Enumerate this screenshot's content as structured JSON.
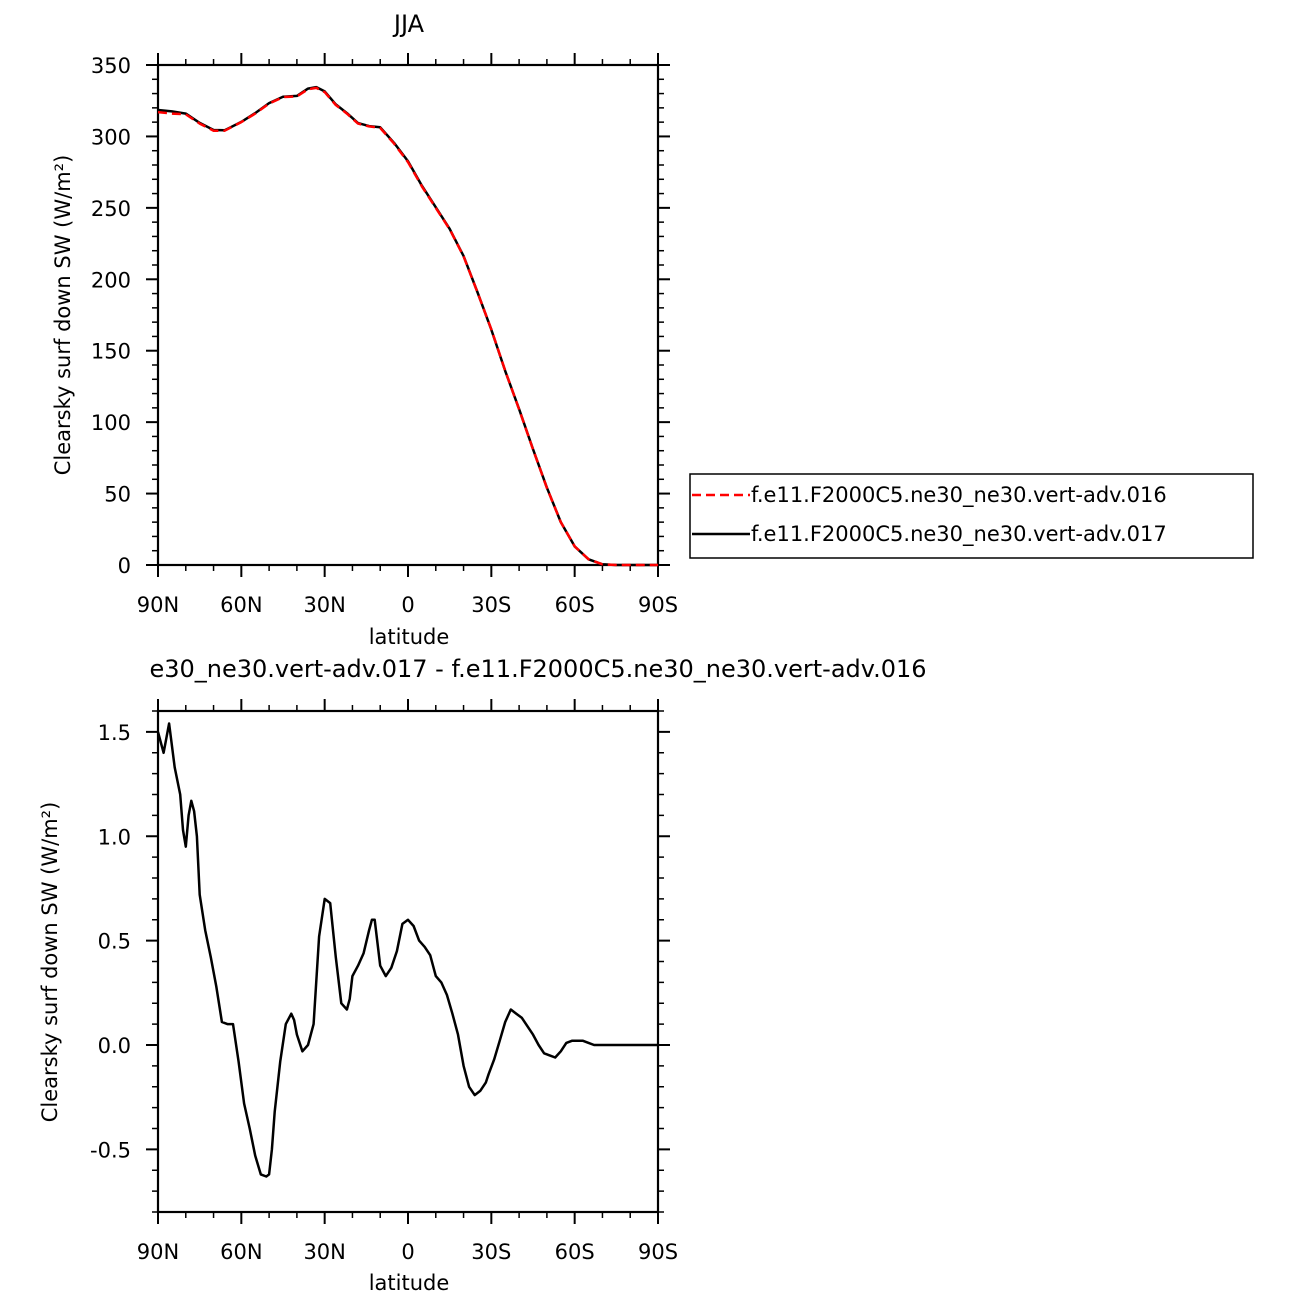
{
  "chart_data": [
    {
      "type": "line",
      "title": "JJA",
      "xlabel": "latitude",
      "ylabel": "Clearsky surf down SW (W/m²)",
      "xlim": [
        90,
        -90
      ],
      "ylim": [
        0,
        350
      ],
      "xticks": [
        90,
        60,
        30,
        0,
        -30,
        -60,
        -90
      ],
      "xtick_labels": [
        "90N",
        "60N",
        "30N",
        "0",
        "30S",
        "60S",
        "90S"
      ],
      "yticks": [
        0,
        50,
        100,
        150,
        200,
        250,
        300,
        350
      ],
      "ytick_labels": [
        "0",
        "50",
        "100",
        "150",
        "200",
        "250",
        "300",
        "350"
      ],
      "grid": false,
      "legend_position": "right",
      "series": [
        {
          "name": "f.e11.F2000C5.ne30_ne30.vert-adv.016",
          "color": "#ff0000",
          "dashed": true,
          "x": [
            90,
            85,
            80,
            75,
            70,
            66,
            60,
            55,
            50,
            45,
            40,
            36,
            33,
            30,
            26,
            22,
            18,
            14,
            10,
            5,
            0,
            -5,
            -10,
            -15,
            -20,
            -25,
            -30,
            -35,
            -40,
            -45,
            -50,
            -55,
            -60,
            -65,
            -70,
            -75,
            -80,
            -85,
            -90
          ],
          "y": [
            317,
            316,
            315.5,
            309,
            304,
            304,
            310,
            316,
            323,
            327.5,
            328,
            333,
            334,
            331,
            322,
            316,
            309,
            307,
            306,
            295,
            282,
            265,
            250,
            235,
            216,
            191,
            165,
            136,
            109,
            81,
            54,
            30,
            13,
            4,
            0.5,
            0,
            0,
            0,
            0
          ]
        },
        {
          "name": "f.e11.F2000C5.ne30_ne30.vert-adv.017",
          "color": "#000000",
          "dashed": false,
          "x": [
            90,
            85,
            80,
            75,
            70,
            66,
            60,
            55,
            50,
            45,
            40,
            36,
            33,
            30,
            26,
            22,
            18,
            14,
            10,
            5,
            0,
            -5,
            -10,
            -15,
            -20,
            -25,
            -30,
            -35,
            -40,
            -45,
            -50,
            -55,
            -60,
            -65,
            -70,
            -75,
            -80,
            -85,
            -90
          ],
          "y": [
            318.5,
            317.5,
            316,
            309.5,
            304.5,
            304.3,
            310.2,
            316.3,
            323.3,
            327.8,
            328.4,
            333.5,
            334.5,
            331.5,
            322.4,
            316.3,
            309.3,
            307.2,
            306.4,
            295.5,
            282.6,
            265.5,
            250.4,
            235.3,
            216.2,
            191.1,
            164.8,
            135.9,
            109.1,
            81.1,
            54.1,
            30,
            13,
            4,
            0.5,
            0,
            0,
            0,
            0
          ]
        }
      ]
    },
    {
      "type": "line",
      "title": "e30_ne30.vert-adv.017 - f.e11.F2000C5.ne30_ne30.vert-adv.016",
      "xlabel": "latitude",
      "ylabel": "Clearsky surf down SW (W/m²)",
      "xlim": [
        90,
        -90
      ],
      "ylim": [
        -0.8,
        1.6
      ],
      "xticks": [
        90,
        60,
        30,
        0,
        -30,
        -60,
        -90
      ],
      "xtick_labels": [
        "90N",
        "60N",
        "30N",
        "0",
        "30S",
        "60S",
        "90S"
      ],
      "yticks": [
        -0.5,
        0.0,
        0.5,
        1.0,
        1.5
      ],
      "ytick_labels": [
        "-0.5",
        "0.0",
        "0.5",
        "1.0",
        "1.5"
      ],
      "grid": false,
      "series": [
        {
          "color": "#000000",
          "dashed": false,
          "x": [
            90,
            88,
            86,
            84,
            82,
            81,
            80,
            79,
            78,
            77,
            76,
            75,
            73,
            71,
            69,
            67,
            65,
            63,
            61,
            59,
            57,
            55,
            53,
            51,
            50,
            49,
            48,
            46,
            44,
            42,
            41,
            40,
            38,
            36,
            34,
            32,
            30,
            28,
            27,
            26,
            24,
            22,
            21,
            20,
            18,
            16,
            14,
            13,
            12,
            10,
            8,
            6,
            4,
            2,
            0,
            -2,
            -4,
            -6,
            -8,
            -10,
            -12,
            -14,
            -16,
            -18,
            -20,
            -22,
            -24,
            -26,
            -28,
            -29,
            -31,
            -33,
            -35,
            -37,
            -39,
            -41,
            -43,
            -45,
            -47,
            -49,
            -51,
            -53,
            -55,
            -57,
            -59,
            -61,
            -63,
            -65,
            -67,
            -70,
            -75,
            -80,
            -85,
            -90
          ],
          "y": [
            1.5,
            1.4,
            1.54,
            1.33,
            1.2,
            1.03,
            0.95,
            1.1,
            1.17,
            1.12,
            1.0,
            0.72,
            0.55,
            0.42,
            0.28,
            0.11,
            0.1,
            0.1,
            -0.08,
            -0.28,
            -0.4,
            -0.53,
            -0.62,
            -0.63,
            -0.62,
            -0.5,
            -0.32,
            -0.08,
            0.1,
            0.15,
            0.12,
            0.05,
            -0.03,
            0.0,
            0.1,
            0.52,
            0.7,
            0.68,
            0.55,
            0.42,
            0.2,
            0.17,
            0.22,
            0.33,
            0.38,
            0.44,
            0.55,
            0.6,
            0.6,
            0.38,
            0.33,
            0.37,
            0.45,
            0.58,
            0.6,
            0.57,
            0.5,
            0.47,
            0.43,
            0.33,
            0.3,
            0.24,
            0.15,
            0.05,
            -0.1,
            -0.2,
            -0.24,
            -0.22,
            -0.18,
            -0.14,
            -0.07,
            0.02,
            0.11,
            0.17,
            0.15,
            0.13,
            0.09,
            0.05,
            0.0,
            -0.04,
            -0.05,
            -0.06,
            -0.03,
            0.01,
            0.02,
            0.02,
            0.02,
            0.01,
            0.0,
            0.0,
            0.0,
            0.0,
            0.0,
            0.0
          ]
        }
      ]
    }
  ]
}
